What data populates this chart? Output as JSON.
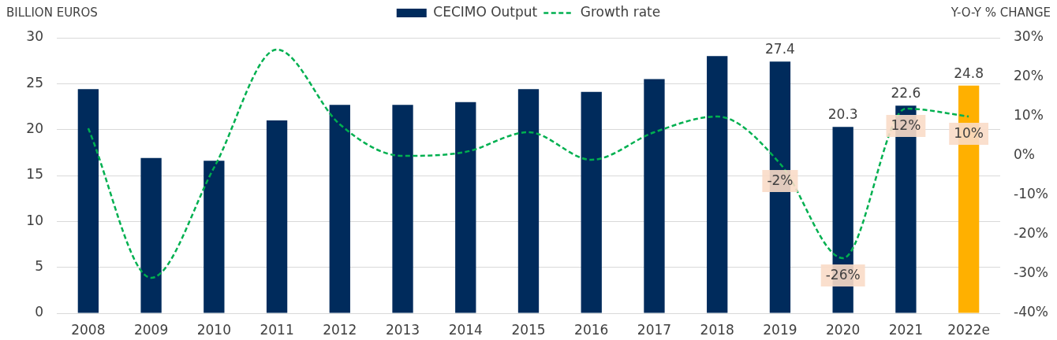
{
  "chart_data": {
    "type": "bar",
    "categories": [
      "2008",
      "2009",
      "2010",
      "2011",
      "2012",
      "2013",
      "2014",
      "2015",
      "2016",
      "2017",
      "2018",
      "2019",
      "2020",
      "2021",
      "2022e"
    ],
    "ylabel": "BILLION EUROS",
    "y2label": "Y-O-Y % CHANGE",
    "series": [
      {
        "name": "CECIMO Output",
        "color": "#002b5c",
        "colors": [
          "#002b5c",
          "#002b5c",
          "#002b5c",
          "#002b5c",
          "#002b5c",
          "#002b5c",
          "#002b5c",
          "#002b5c",
          "#002b5c",
          "#002b5c",
          "#002b5c",
          "#002b5c",
          "#002b5c",
          "#002b5c",
          "#ffb000"
        ],
        "values": [
          24.4,
          16.9,
          16.6,
          21.0,
          22.7,
          22.7,
          23.0,
          24.4,
          24.1,
          25.5,
          28.0,
          27.4,
          20.3,
          22.6,
          24.8
        ],
        "value_labels": [
          null,
          null,
          null,
          null,
          null,
          null,
          null,
          null,
          null,
          null,
          null,
          "27.4",
          "20.3",
          "22.6",
          "24.8"
        ]
      },
      {
        "name": "Growth rate",
        "type": "line",
        "axis": "y2",
        "color": "#00b050",
        "values": [
          7,
          -31,
          -3,
          27,
          8,
          0,
          1,
          6,
          -1,
          6,
          10,
          -2,
          -26,
          12,
          10
        ],
        "value_labels": [
          null,
          null,
          null,
          null,
          null,
          null,
          null,
          null,
          null,
          null,
          null,
          "-2%",
          "-26%",
          "12%",
          "10%"
        ]
      }
    ],
    "ylim": [
      0,
      30
    ],
    "yticks": [
      0,
      5,
      10,
      15,
      20,
      25,
      30
    ],
    "y2lim": [
      -40,
      30
    ],
    "y2ticks": [
      {
        "value": -40,
        "label": "-40%"
      },
      {
        "value": -30,
        "label": "-30%"
      },
      {
        "value": -20,
        "label": "-20%"
      },
      {
        "value": -10,
        "label": "-10%"
      },
      {
        "value": 0,
        "label": "0%"
      },
      {
        "value": 10,
        "label": "10%"
      },
      {
        "value": 20,
        "label": "20%"
      },
      {
        "value": 30,
        "label": "30%"
      }
    ],
    "grid": "y",
    "legend": "top",
    "marker": "none",
    "line_style": "dashed"
  }
}
